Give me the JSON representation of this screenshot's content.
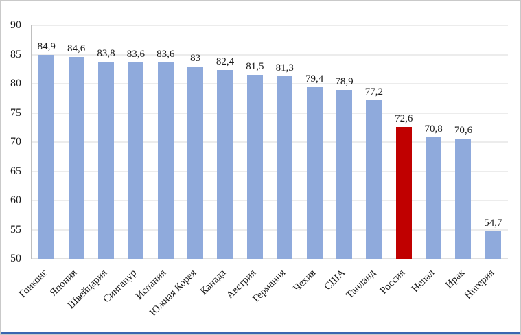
{
  "chart_data": {
    "type": "bar",
    "title": "",
    "xlabel": "",
    "ylabel": "",
    "categories": [
      "Гонконг",
      "Япония",
      "Швейцария",
      "Сингапур",
      "Испания",
      "Южная Корея",
      "Канада",
      "Австрия",
      "Германия",
      "Чехия",
      "США",
      "Таиланд",
      "Россия",
      "Непал",
      "Ирак",
      "Нигерия"
    ],
    "values": [
      84.9,
      84.6,
      83.8,
      83.6,
      83.6,
      83,
      82.4,
      81.5,
      81.3,
      79.4,
      78.9,
      77.2,
      72.6,
      70.8,
      70.6,
      54.7
    ],
    "value_labels": [
      "84,9",
      "84,6",
      "83,8",
      "83,6",
      "83,6",
      "83",
      "82,4",
      "81,5",
      "81,3",
      "79,4",
      "78,9",
      "77,2",
      "72,6",
      "70,8",
      "70,6",
      "54,7"
    ],
    "highlight_index": 12,
    "colors": {
      "bar": "#8faadc",
      "highlight": "#c00000",
      "gridline": "#d9d9d9",
      "axis": "#bfbfbf",
      "bottom_rule": "#3a66b0"
    },
    "ylim": [
      50,
      90
    ],
    "yticks": [
      50,
      55,
      60,
      65,
      70,
      75,
      80,
      85,
      90
    ],
    "grid": true,
    "legend": "none"
  }
}
